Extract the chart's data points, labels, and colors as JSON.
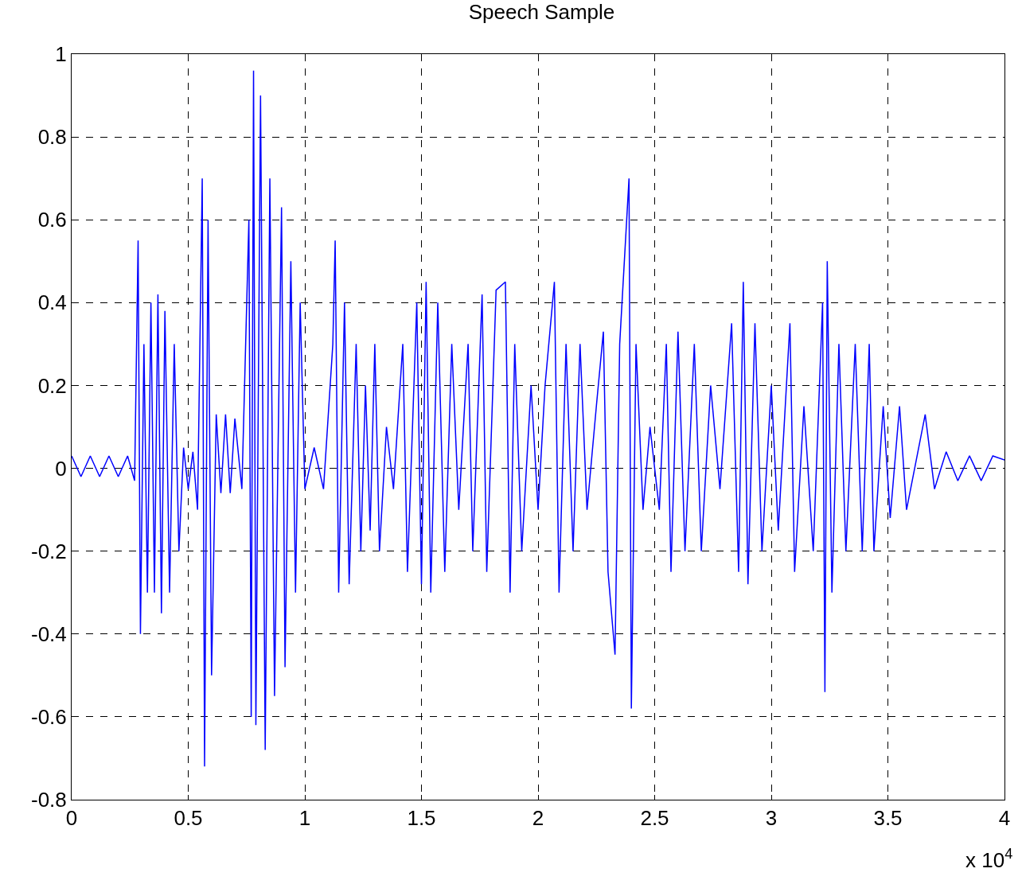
{
  "chart_data": {
    "type": "line",
    "title": "Speech Sample",
    "annotations": [
      "x 10$^{4}$"
    ],
    "x": [
      0,
      0.04,
      0.08,
      0.12,
      0.16,
      0.2,
      0.24,
      0.27,
      0.285,
      0.295,
      0.31,
      0.325,
      0.34,
      0.355,
      0.37,
      0.385,
      0.4,
      0.42,
      0.44,
      0.46,
      0.48,
      0.5,
      0.52,
      0.54,
      0.56,
      0.57,
      0.585,
      0.6,
      0.62,
      0.64,
      0.66,
      0.68,
      0.7,
      0.73,
      0.76,
      0.77,
      0.78,
      0.79,
      0.81,
      0.83,
      0.85,
      0.87,
      0.9,
      0.915,
      0.94,
      0.96,
      0.98,
      1.0,
      1.04,
      1.08,
      1.12,
      1.13,
      1.145,
      1.17,
      1.19,
      1.22,
      1.24,
      1.26,
      1.28,
      1.3,
      1.32,
      1.35,
      1.38,
      1.42,
      1.44,
      1.48,
      1.5,
      1.52,
      1.54,
      1.57,
      1.6,
      1.63,
      1.66,
      1.7,
      1.72,
      1.76,
      1.78,
      1.82,
      1.86,
      1.88,
      1.9,
      1.93,
      1.97,
      2.0,
      2.03,
      2.07,
      2.09,
      2.12,
      2.15,
      2.18,
      2.21,
      2.25,
      2.28,
      2.3,
      2.33,
      2.35,
      2.39,
      2.4,
      2.42,
      2.45,
      2.48,
      2.52,
      2.55,
      2.57,
      2.6,
      2.63,
      2.67,
      2.7,
      2.74,
      2.78,
      2.83,
      2.86,
      2.88,
      2.9,
      2.93,
      2.96,
      3.0,
      3.03,
      3.08,
      3.1,
      3.14,
      3.18,
      3.22,
      3.23,
      3.24,
      3.26,
      3.29,
      3.32,
      3.36,
      3.39,
      3.42,
      3.44,
      3.48,
      3.51,
      3.55,
      3.58,
      3.66,
      3.7,
      3.75,
      3.8,
      3.85,
      3.9,
      3.95,
      4.0
    ],
    "series": [
      {
        "color": "#0000ff",
        "values": [
          0.03,
          -0.02,
          0.03,
          -0.02,
          0.03,
          -0.02,
          0.03,
          -0.03,
          0.55,
          -0.4,
          0.3,
          -0.3,
          0.4,
          -0.3,
          0.42,
          -0.35,
          0.38,
          -0.3,
          0.3,
          -0.2,
          0.05,
          -0.05,
          0.04,
          -0.1,
          0.7,
          -0.72,
          0.6,
          -0.5,
          0.13,
          -0.06,
          0.13,
          -0.06,
          0.12,
          -0.05,
          0.6,
          -0.6,
          0.96,
          -0.62,
          0.9,
          -0.68,
          0.7,
          -0.55,
          0.63,
          -0.48,
          0.5,
          -0.3,
          0.4,
          -0.05,
          0.05,
          -0.05,
          0.3,
          0.55,
          -0.3,
          0.4,
          -0.28,
          0.3,
          -0.2,
          0.2,
          -0.15,
          0.3,
          -0.2,
          0.1,
          -0.05,
          0.3,
          -0.25,
          0.4,
          -0.28,
          0.45,
          -0.3,
          0.4,
          -0.25,
          0.3,
          -0.1,
          0.3,
          -0.2,
          0.42,
          -0.25,
          0.43,
          0.45,
          -0.3,
          0.3,
          -0.2,
          0.2,
          -0.1,
          0.2,
          0.45,
          -0.3,
          0.3,
          -0.2,
          0.3,
          -0.1,
          0.15,
          0.33,
          -0.25,
          -0.45,
          0.3,
          0.7,
          -0.58,
          0.3,
          -0.1,
          0.1,
          -0.1,
          0.3,
          -0.25,
          0.33,
          -0.2,
          0.3,
          -0.2,
          0.2,
          -0.05,
          0.35,
          -0.25,
          0.45,
          -0.28,
          0.35,
          -0.2,
          0.2,
          -0.15,
          0.35,
          -0.25,
          0.15,
          -0.2,
          0.4,
          -0.54,
          0.5,
          -0.3,
          0.3,
          -0.2,
          0.3,
          -0.2,
          0.3,
          -0.2,
          0.15,
          -0.12,
          0.15,
          -0.1,
          0.13,
          -0.05,
          0.04,
          -0.03,
          0.03,
          -0.03,
          0.03,
          0.02
        ]
      }
    ],
    "xlim": [
      0,
      4
    ],
    "xticks": [
      0,
      0.5,
      1,
      1.5,
      2,
      2.5,
      3,
      3.5,
      4
    ],
    "ylim": [
      -0.8,
      1
    ],
    "yticks": [
      -0.8,
      -0.6,
      -0.4,
      -0.2,
      0,
      0.2,
      0.4,
      0.6,
      0.8,
      1
    ],
    "grid": true,
    "line_style": "solid",
    "marker": "none"
  }
}
